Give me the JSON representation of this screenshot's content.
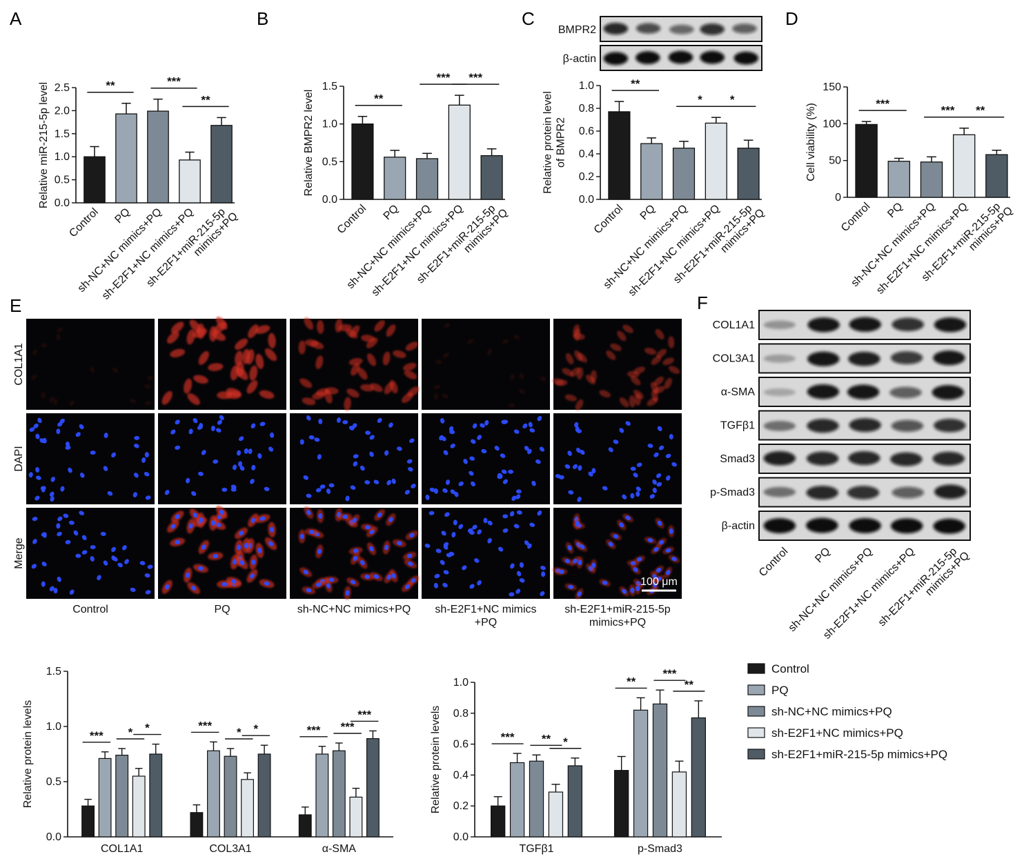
{
  "colors": {
    "control": "#1a1a1a",
    "pq": "#9aa7b3",
    "shnc": "#7d8a96",
    "she2f1_nc": "#dfe5e9",
    "she2f1_mir": "#4f5c66"
  },
  "chart_data": [
    {
      "id": "A",
      "panel_label": "A",
      "type": "bar",
      "categories": [
        "Control",
        "PQ",
        "sh-NC+NC mimics+PQ",
        "sh-E2F1+NC mimics+PQ",
        "sh-E2F1+miR-215-5p\nmimics+PQ"
      ],
      "values": [
        1.0,
        1.93,
        1.99,
        0.93,
        1.68
      ],
      "errors": [
        0.22,
        0.23,
        0.26,
        0.17,
        0.17
      ],
      "ylabel": "Relative miR-215-5p level",
      "ylim": [
        0,
        2.5
      ],
      "yticks": [
        "0.0",
        "0.5",
        "1.0",
        "1.5",
        "2.0",
        "2.5"
      ],
      "significance": [
        {
          "from": 0,
          "to": 1,
          "label": "**"
        },
        {
          "from": 2,
          "to": 3,
          "label": "***"
        },
        {
          "from": 3,
          "to": 4,
          "label": "**"
        }
      ]
    },
    {
      "id": "B",
      "panel_label": "B",
      "type": "bar",
      "categories": [
        "Control",
        "PQ",
        "sh-NC+NC mimics+PQ",
        "sh-E2F1+NC mimics+PQ",
        "sh-E2F1+miR-215-5p\nmimics+PQ"
      ],
      "values": [
        1.0,
        0.56,
        0.54,
        1.25,
        0.58
      ],
      "errors": [
        0.1,
        0.09,
        0.07,
        0.13,
        0.09
      ],
      "ylabel": "Relative BMPR2 level",
      "ylim": [
        0,
        1.5
      ],
      "yticks": [
        "0.0",
        "0.5",
        "1.0",
        "1.5"
      ],
      "significance": [
        {
          "from": 0,
          "to": 1,
          "label": "**"
        },
        {
          "from": 2,
          "to": 3,
          "label": "***"
        },
        {
          "from": 3,
          "to": 4,
          "label": "***"
        }
      ]
    },
    {
      "id": "C",
      "panel_label": "C",
      "type": "bar",
      "categories": [
        "Control",
        "PQ",
        "sh-NC+NC mimics+PQ",
        "sh-E2F1+NC mimics+PQ",
        "sh-E2F1+miR-215-5p\nmimics+PQ"
      ],
      "values": [
        0.77,
        0.49,
        0.45,
        0.67,
        0.45
      ],
      "errors": [
        0.09,
        0.05,
        0.06,
        0.05,
        0.07
      ],
      "ylabel": "Relative protein level\nof BMPR2",
      "ylim": [
        0,
        1.0
      ],
      "yticks": [
        "0.0",
        "0.2",
        "0.4",
        "0.6",
        "0.8",
        "1.0"
      ],
      "significance": [
        {
          "from": 0,
          "to": 1,
          "label": "**"
        },
        {
          "from": 2,
          "to": 3,
          "label": "*"
        },
        {
          "from": 3,
          "to": 4,
          "label": "*"
        }
      ]
    },
    {
      "id": "D",
      "panel_label": "D",
      "type": "bar",
      "categories": [
        "Control",
        "PQ",
        "sh-NC+NC mimics+PQ",
        "sh-E2F1+NC mimics+PQ",
        "sh-E2F1+miR-215-5p\nmimics+PQ"
      ],
      "values": [
        99,
        49,
        48,
        85,
        58
      ],
      "errors": [
        4,
        4,
        7,
        9,
        6
      ],
      "ylabel": "Cell viability (%)",
      "ylim": [
        0,
        150
      ],
      "yticks": [
        "0",
        "50",
        "100",
        "150"
      ],
      "significance": [
        {
          "from": 0,
          "to": 1,
          "label": "***"
        },
        {
          "from": 2,
          "to": 3,
          "label": "***"
        },
        {
          "from": 3,
          "to": 4,
          "label": "**"
        }
      ]
    },
    {
      "id": "F1",
      "type": "bar",
      "groups": [
        "COL1A1",
        "COL3A1",
        "α-SMA"
      ],
      "series": [
        {
          "name": "Control",
          "values": [
            0.28,
            0.22,
            0.2
          ],
          "errors": [
            0.06,
            0.07,
            0.07
          ]
        },
        {
          "name": "PQ",
          "values": [
            0.71,
            0.78,
            0.75
          ],
          "errors": [
            0.06,
            0.08,
            0.07
          ]
        },
        {
          "name": "sh-NC+NC mimics+PQ",
          "values": [
            0.74,
            0.73,
            0.78
          ],
          "errors": [
            0.06,
            0.07,
            0.07
          ]
        },
        {
          "name": "sh-E2F1+NC mimics+PQ",
          "values": [
            0.55,
            0.52,
            0.36
          ],
          "errors": [
            0.07,
            0.06,
            0.08
          ]
        },
        {
          "name": "sh-E2F1+miR-215-5p mimics+PQ",
          "values": [
            0.75,
            0.75,
            0.89
          ],
          "errors": [
            0.09,
            0.08,
            0.07
          ]
        }
      ],
      "ylabel": "Relative protein levels",
      "ylim": [
        0,
        1.5
      ],
      "yticks": [
        "0.0",
        "0.5",
        "1.0",
        "1.5"
      ],
      "significance": [
        {
          "group": 0,
          "from": 0,
          "to": 1,
          "label": "***"
        },
        {
          "group": 0,
          "from": 2,
          "to": 3,
          "label": "*"
        },
        {
          "group": 0,
          "from": 3,
          "to": 4,
          "label": "*"
        },
        {
          "group": 1,
          "from": 0,
          "to": 1,
          "label": "***"
        },
        {
          "group": 1,
          "from": 2,
          "to": 3,
          "label": "*"
        },
        {
          "group": 1,
          "from": 3,
          "to": 4,
          "label": "*"
        },
        {
          "group": 2,
          "from": 0,
          "to": 1,
          "label": "***"
        },
        {
          "group": 2,
          "from": 2,
          "to": 3,
          "label": "***"
        },
        {
          "group": 2,
          "from": 3,
          "to": 4,
          "label": "***"
        }
      ]
    },
    {
      "id": "F2",
      "type": "bar",
      "groups": [
        "TGFβ1",
        "p-Smad3"
      ],
      "series": [
        {
          "name": "Control",
          "values": [
            0.2,
            0.43
          ],
          "errors": [
            0.06,
            0.09
          ]
        },
        {
          "name": "PQ",
          "values": [
            0.48,
            0.82
          ],
          "errors": [
            0.06,
            0.08
          ]
        },
        {
          "name": "sh-NC+NC mimics+PQ",
          "values": [
            0.49,
            0.86
          ],
          "errors": [
            0.04,
            0.09
          ]
        },
        {
          "name": "sh-E2F1+NC mimics+PQ",
          "values": [
            0.29,
            0.42
          ],
          "errors": [
            0.05,
            0.07
          ]
        },
        {
          "name": "sh-E2F1+miR-215-5p mimics+PQ",
          "values": [
            0.46,
            0.77
          ],
          "errors": [
            0.05,
            0.11
          ]
        }
      ],
      "ylabel": "Relative protein levels",
      "ylim": [
        0,
        1.0
      ],
      "yticks": [
        "0.0",
        "0.2",
        "0.4",
        "0.6",
        "0.8",
        "1.0"
      ],
      "significance": [
        {
          "group": 0,
          "from": 0,
          "to": 1,
          "label": "***"
        },
        {
          "group": 0,
          "from": 2,
          "to": 3,
          "label": "**"
        },
        {
          "group": 0,
          "from": 3,
          "to": 4,
          "label": "*"
        },
        {
          "group": 1,
          "from": 0,
          "to": 1,
          "label": "**"
        },
        {
          "group": 1,
          "from": 2,
          "to": 3,
          "label": "***"
        },
        {
          "group": 1,
          "from": 3,
          "to": 4,
          "label": "**"
        }
      ]
    }
  ],
  "legend": [
    "Control",
    "PQ",
    "sh-NC+NC mimics+PQ",
    "sh-E2F1+NC mimics+PQ",
    "sh-E2F1+miR-215-5p mimics+PQ"
  ],
  "blot_c": {
    "rows": [
      {
        "label": "BMPR2",
        "intensity": [
          0.85,
          0.65,
          0.5,
          0.8,
          0.55
        ]
      },
      {
        "label": "β-actin",
        "intensity": [
          1,
          1,
          1,
          1,
          1
        ]
      }
    ]
  },
  "blot_f": {
    "panel_label": "F",
    "rows": [
      {
        "label": "COL1A1",
        "intensity": [
          0.2,
          0.95,
          0.95,
          0.8,
          0.95
        ]
      },
      {
        "label": "COL3A1",
        "intensity": [
          0.15,
          0.95,
          0.9,
          0.75,
          0.95
        ]
      },
      {
        "label": "α-SMA",
        "intensity": [
          0.1,
          0.95,
          0.95,
          0.55,
          0.95
        ]
      },
      {
        "label": "TGFβ1",
        "intensity": [
          0.4,
          0.85,
          0.85,
          0.6,
          0.8
        ]
      },
      {
        "label": "Smad3",
        "intensity": [
          0.9,
          0.85,
          0.85,
          0.85,
          0.85
        ]
      },
      {
        "label": "p-Smad3",
        "intensity": [
          0.4,
          0.85,
          0.8,
          0.55,
          0.9
        ]
      },
      {
        "label": "β-actin",
        "intensity": [
          1,
          1,
          1,
          1,
          1
        ]
      }
    ],
    "lanes": [
      "Control",
      "PQ",
      "sh-NC+NC mimics+PQ",
      "sh-E2F1+NC mimics+PQ",
      "sh-E2F1+miR-215-5p\nmimics+PQ"
    ]
  },
  "panel_e": {
    "panel_label": "E",
    "rows": [
      "COL1A1",
      "DAPI",
      "Merge"
    ],
    "columns": [
      "Control",
      "PQ",
      "sh-NC+NC mimics+PQ",
      "sh-E2F1+NC mimics\n+PQ",
      "sh-E2F1+miR-215-5p\nmimics+PQ"
    ],
    "red_density": [
      0.05,
      0.9,
      0.75,
      0.08,
      0.6
    ],
    "blue_density": [
      0.6,
      0.5,
      0.55,
      0.85,
      0.65
    ],
    "scale_bar": "100 μm"
  }
}
